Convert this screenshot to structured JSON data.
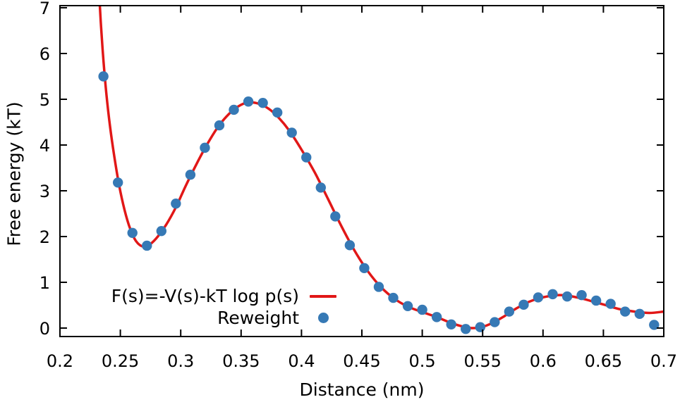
{
  "chart_data": {
    "type": "line",
    "title": "",
    "xlabel": "Distance (nm)",
    "ylabel": "Free energy (kT)",
    "xlim": [
      0.2,
      0.7
    ],
    "ylim": [
      -0.185,
      7.046
    ],
    "xticks": [
      0.2,
      0.25,
      0.3,
      0.35,
      0.4,
      0.45,
      0.5,
      0.55,
      0.6,
      0.65,
      0.7
    ],
    "xtick_labels": [
      "0.2",
      "0.25",
      "0.3",
      "0.35",
      "0.4",
      "0.45",
      "0.5",
      "0.55",
      "0.6",
      "0.65",
      "0.7"
    ],
    "yticks": [
      0,
      1,
      2,
      3,
      4,
      5,
      6,
      7
    ],
    "ytick_labels": [
      "0",
      "1",
      "2",
      "3",
      "4",
      "5",
      "6",
      "7"
    ],
    "grid": false,
    "legend_position": "inside bottom-left",
    "background": "#ffffff",
    "axis_color": "#000000",
    "series": [
      {
        "name": "F(s)=-V(s)-kT log p(s)",
        "type": "line",
        "color": "#e11717",
        "line_width": 3.5,
        "x": [
          0.2328,
          0.234,
          0.236,
          0.2385,
          0.2415,
          0.245,
          0.249,
          0.2535,
          0.258,
          0.263,
          0.269,
          0.275,
          0.281,
          0.288,
          0.296,
          0.304,
          0.313,
          0.322,
          0.331,
          0.34,
          0.348,
          0.356,
          0.365,
          0.373,
          0.381,
          0.39,
          0.4,
          0.411,
          0.422,
          0.433,
          0.444,
          0.455,
          0.466,
          0.477,
          0.488,
          0.5,
          0.512,
          0.524,
          0.534,
          0.541,
          0.549,
          0.558,
          0.568,
          0.578,
          0.588,
          0.598,
          0.608,
          0.614,
          0.62,
          0.63,
          0.64,
          0.652,
          0.664,
          0.676,
          0.688,
          0.7
        ],
        "y": [
          7.15,
          6.6,
          5.85,
          5.1,
          4.4,
          3.75,
          3.12,
          2.58,
          2.18,
          1.9,
          1.78,
          1.84,
          2.0,
          2.26,
          2.64,
          3.1,
          3.58,
          4.02,
          4.4,
          4.68,
          4.85,
          4.93,
          4.9,
          4.79,
          4.6,
          4.31,
          3.9,
          3.4,
          2.82,
          2.23,
          1.69,
          1.24,
          0.89,
          0.64,
          0.47,
          0.35,
          0.24,
          0.11,
          0.03,
          0.0,
          0.02,
          0.11,
          0.26,
          0.43,
          0.57,
          0.66,
          0.71,
          0.72,
          0.71,
          0.66,
          0.59,
          0.5,
          0.41,
          0.36,
          0.33,
          0.36
        ]
      },
      {
        "name": "Reweight",
        "type": "scatter",
        "color": "#3679b5",
        "marker": "circle",
        "marker_radius": 7.2,
        "x": [
          0.236,
          0.248,
          0.26,
          0.272,
          0.284,
          0.296,
          0.308,
          0.32,
          0.332,
          0.344,
          0.356,
          0.368,
          0.38,
          0.392,
          0.404,
          0.416,
          0.428,
          0.44,
          0.452,
          0.464,
          0.476,
          0.488,
          0.5,
          0.512,
          0.524,
          0.536,
          0.548,
          0.56,
          0.572,
          0.584,
          0.596,
          0.608,
          0.62,
          0.632,
          0.644,
          0.656,
          0.668,
          0.68,
          0.692
        ],
        "y": [
          5.5,
          3.18,
          2.08,
          1.8,
          2.12,
          2.72,
          3.35,
          3.94,
          4.43,
          4.77,
          4.95,
          4.92,
          4.71,
          4.27,
          3.73,
          3.07,
          2.44,
          1.81,
          1.31,
          0.9,
          0.66,
          0.48,
          0.4,
          0.24,
          0.08,
          -0.02,
          0.02,
          0.13,
          0.36,
          0.51,
          0.67,
          0.74,
          0.69,
          0.72,
          0.6,
          0.53,
          0.36,
          0.31,
          0.07
        ]
      }
    ]
  }
}
